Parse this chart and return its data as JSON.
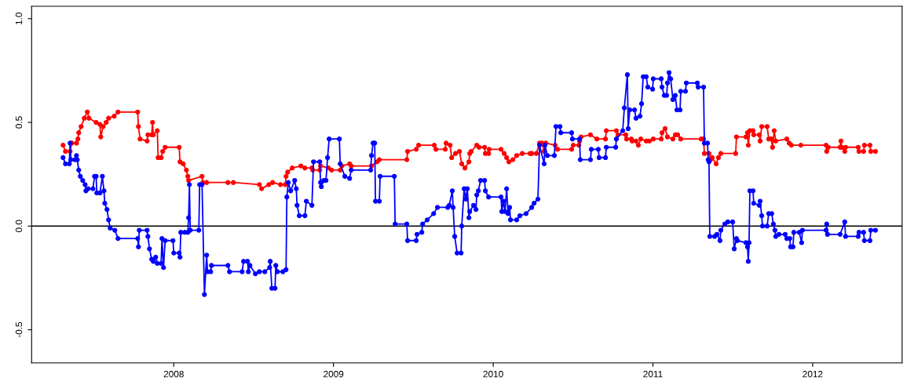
{
  "chart_data": {
    "type": "line",
    "marker": "circle",
    "line_style": "solid",
    "grid": false,
    "legend": false,
    "xlim": [
      2007.11,
      2012.56
    ],
    "ylim": [
      -0.66,
      1.06
    ],
    "xticks": [
      2008,
      2009,
      2010,
      2011,
      2012
    ],
    "yticks": [
      -0.5,
      {
        "value": 0,
        "label": "0.0"
      },
      0.5,
      {
        "value": 1,
        "label": "1.0"
      }
    ],
    "ref_lines": [
      {
        "axis": "y",
        "value": 0,
        "color": "#000000"
      }
    ],
    "series": [
      {
        "color": "#ff0000",
        "x": [
          2007.307,
          2007.322,
          2007.351,
          2007.361,
          2007.391,
          2007.4,
          2007.405,
          2007.42,
          2007.44,
          2007.459,
          2007.469,
          2007.514,
          2007.538,
          2007.543,
          2007.558,
          2007.577,
          2007.592,
          2007.627,
          2007.651,
          2007.774,
          2007.779,
          2007.789,
          2007.833,
          2007.838,
          2007.862,
          2007.867,
          2007.872,
          2007.897,
          2007.902,
          2007.921,
          2007.931,
          2007.946,
          2008.034,
          2008.039,
          2008.059,
          2008.079,
          2008.088,
          2008.093,
          2008.177,
          2008.182,
          2008.206,
          2008.339,
          2008.373,
          2008.536,
          2008.55,
          2008.595,
          2008.619,
          2008.668,
          2008.698,
          2008.703,
          2008.713,
          2008.742,
          2008.796,
          2008.821,
          2008.865,
          2008.87,
          2008.914,
          2008.919,
          2008.968,
          2008.988,
          2009.042,
          2009.052,
          2009.101,
          2009.111,
          2009.238,
          2009.273,
          2009.287,
          2009.459,
          2009.464,
          2009.518,
          2009.533,
          2009.631,
          2009.641,
          2009.7,
          2009.705,
          2009.73,
          2009.74,
          2009.764,
          2009.789,
          2009.803,
          2009.823,
          2009.848,
          2009.853,
          2009.862,
          2009.897,
          2009.912,
          2009.946,
          2009.951,
          2009.971,
          2009.975,
          2010.049,
          2010.069,
          2010.084,
          2010.098,
          2010.123,
          2010.147,
          2010.182,
          2010.231,
          2010.241,
          2010.27,
          2010.29,
          2010.305,
          2010.319,
          2010.329,
          2010.388,
          2010.403,
          2010.491,
          2010.501,
          2010.536,
          2010.541,
          2010.55,
          2010.609,
          2010.649,
          2010.703,
          2010.708,
          2010.771,
          2010.781,
          2010.83,
          2010.835,
          2010.865,
          2010.87,
          2010.894,
          2010.909,
          2010.924,
          2010.958,
          2010.978,
          2011.002,
          2011.052,
          2011.057,
          2011.076,
          2011.091,
          2011.125,
          2011.14,
          2011.155,
          2011.174,
          2011.302,
          2011.317,
          2011.322,
          2011.351,
          2011.361,
          2011.371,
          2011.396,
          2011.41,
          2011.425,
          2011.518,
          2011.523,
          2011.582,
          2011.592,
          2011.597,
          2011.607,
          2011.627,
          2011.631,
          2011.666,
          2011.671,
          2011.681,
          2011.715,
          2011.725,
          2011.74,
          2011.749,
          2011.759,
          2011.769,
          2011.838,
          2011.853,
          2011.867,
          2011.926,
          2012.084,
          2012.088,
          2012.098,
          2012.172,
          2012.177,
          2012.182,
          2012.201,
          2012.206,
          2012.285,
          2012.29,
          2012.319,
          2012.324,
          2012.359,
          2012.364,
          2012.393
        ],
        "values": [
          0.39,
          0.36,
          0.36,
          0.4,
          0.4,
          0.42,
          0.45,
          0.48,
          0.52,
          0.55,
          0.52,
          0.5,
          0.49,
          0.43,
          0.48,
          0.5,
          0.52,
          0.53,
          0.55,
          0.55,
          0.48,
          0.42,
          0.41,
          0.44,
          0.44,
          0.5,
          0.44,
          0.46,
          0.33,
          0.33,
          0.36,
          0.38,
          0.38,
          0.31,
          0.3,
          0.27,
          0.24,
          0.22,
          0.24,
          0.21,
          0.21,
          0.21,
          0.21,
          0.2,
          0.18,
          0.2,
          0.21,
          0.2,
          0.2,
          0.24,
          0.26,
          0.28,
          0.29,
          0.28,
          0.28,
          0.27,
          0.27,
          0.29,
          0.28,
          0.27,
          0.27,
          0.29,
          0.3,
          0.29,
          0.29,
          0.31,
          0.32,
          0.32,
          0.36,
          0.37,
          0.39,
          0.39,
          0.37,
          0.37,
          0.4,
          0.39,
          0.33,
          0.35,
          0.36,
          0.3,
          0.28,
          0.31,
          0.35,
          0.36,
          0.39,
          0.38,
          0.38,
          0.35,
          0.35,
          0.37,
          0.37,
          0.35,
          0.33,
          0.31,
          0.32,
          0.34,
          0.35,
          0.35,
          0.35,
          0.35,
          0.4,
          0.4,
          0.36,
          0.4,
          0.39,
          0.37,
          0.37,
          0.39,
          0.39,
          0.41,
          0.43,
          0.44,
          0.42,
          0.42,
          0.46,
          0.46,
          0.44,
          0.44,
          0.42,
          0.42,
          0.41,
          0.41,
          0.39,
          0.42,
          0.41,
          0.41,
          0.42,
          0.42,
          0.45,
          0.47,
          0.43,
          0.42,
          0.44,
          0.44,
          0.42,
          0.42,
          0.42,
          0.35,
          0.35,
          0.32,
          0.33,
          0.3,
          0.33,
          0.35,
          0.35,
          0.43,
          0.43,
          0.45,
          0.39,
          0.46,
          0.46,
          0.44,
          0.44,
          0.41,
          0.48,
          0.48,
          0.42,
          0.42,
          0.38,
          0.46,
          0.41,
          0.42,
          0.4,
          0.39,
          0.39,
          0.39,
          0.36,
          0.38,
          0.38,
          0.41,
          0.38,
          0.36,
          0.38,
          0.38,
          0.36,
          0.36,
          0.39,
          0.39,
          0.36,
          0.36
        ]
      },
      {
        "color": "#0000ff",
        "x": [
          2007.307,
          2007.322,
          2007.346,
          2007.351,
          2007.356,
          2007.381,
          2007.391,
          2007.396,
          2007.405,
          2007.415,
          2007.43,
          2007.445,
          2007.45,
          2007.464,
          2007.494,
          2007.504,
          2007.514,
          2007.518,
          2007.538,
          2007.553,
          2007.563,
          2007.568,
          2007.582,
          2007.592,
          2007.602,
          2007.631,
          2007.651,
          2007.774,
          2007.779,
          2007.784,
          2007.833,
          2007.838,
          2007.848,
          2007.862,
          2007.872,
          2007.887,
          2007.897,
          2007.921,
          2007.926,
          2007.936,
          2007.946,
          2007.995,
          2008.0,
          2008.034,
          2008.039,
          2008.044,
          2008.069,
          2008.088,
          2008.093,
          2008.098,
          2008.103,
          2008.157,
          2008.162,
          2008.177,
          2008.192,
          2008.206,
          2008.211,
          2008.231,
          2008.236,
          2008.339,
          2008.349,
          2008.428,
          2008.437,
          2008.462,
          2008.467,
          2008.477,
          2008.511,
          2008.536,
          2008.57,
          2008.6,
          2008.604,
          2008.614,
          2008.634,
          2008.639,
          2008.649,
          2008.683,
          2008.703,
          2008.708,
          2008.717,
          2008.732,
          2008.757,
          2008.767,
          2008.772,
          2008.786,
          2008.821,
          2008.83,
          2008.865,
          2008.875,
          2008.914,
          2008.919,
          2008.924,
          2008.939,
          2008.953,
          2008.963,
          2008.973,
          2009.037,
          2009.042,
          2009.071,
          2009.101,
          2009.111,
          2009.233,
          2009.238,
          2009.248,
          2009.258,
          2009.263,
          2009.287,
          2009.292,
          2009.381,
          2009.386,
          2009.459,
          2009.464,
          2009.518,
          2009.523,
          2009.553,
          2009.558,
          2009.587,
          2009.627,
          2009.651,
          2009.715,
          2009.725,
          2009.744,
          2009.749,
          2009.759,
          2009.774,
          2009.799,
          2009.803,
          2009.818,
          2009.828,
          2009.838,
          2009.848,
          2009.853,
          2009.877,
          2009.892,
          2009.897,
          2009.907,
          2009.921,
          2009.946,
          2009.951,
          2009.971,
          2010.049,
          2010.054,
          2010.064,
          2010.074,
          2010.084,
          2010.093,
          2010.103,
          2010.108,
          2010.147,
          2010.167,
          2010.206,
          2010.241,
          2010.256,
          2010.28,
          2010.29,
          2010.319,
          2010.324,
          2010.339,
          2010.383,
          2010.393,
          2010.418,
          2010.423,
          2010.491,
          2010.496,
          2010.541,
          2010.545,
          2010.609,
          2010.614,
          2010.658,
          2010.663,
          2010.703,
          2010.708,
          2010.767,
          2010.771,
          2010.811,
          2010.821,
          2010.84,
          2010.845,
          2010.855,
          2010.885,
          2010.894,
          2010.919,
          2010.929,
          2010.939,
          2010.958,
          2010.968,
          2010.998,
          2011.002,
          2011.052,
          2011.057,
          2011.071,
          2011.086,
          2011.091,
          2011.101,
          2011.111,
          2011.125,
          2011.14,
          2011.15,
          2011.17,
          2011.174,
          2011.204,
          2011.209,
          2011.278,
          2011.283,
          2011.317,
          2011.322,
          2011.342,
          2011.346,
          2011.351,
          2011.356,
          2011.386,
          2011.401,
          2011.42,
          2011.425,
          2011.45,
          2011.469,
          2011.499,
          2011.509,
          2011.523,
          2011.528,
          2011.582,
          2011.592,
          2011.597,
          2011.602,
          2011.607,
          2011.627,
          2011.631,
          2011.666,
          2011.671,
          2011.681,
          2011.686,
          2011.715,
          2011.725,
          2011.744,
          2011.754,
          2011.764,
          2011.769,
          2011.789,
          2011.828,
          2011.838,
          2011.857,
          2011.862,
          2011.877,
          2011.882,
          2011.916,
          2011.931,
          2011.936,
          2012.084,
          2012.088,
          2012.093,
          2012.172,
          2012.201,
          2012.206,
          2012.285,
          2012.29,
          2012.319,
          2012.324,
          2012.359,
          2012.364,
          2012.393
        ],
        "values": [
          0.33,
          0.3,
          0.3,
          0.4,
          0.32,
          0.32,
          0.34,
          0.32,
          0.27,
          0.24,
          0.22,
          0.2,
          0.17,
          0.18,
          0.18,
          0.24,
          0.24,
          0.16,
          0.16,
          0.24,
          0.17,
          0.11,
          0.08,
          0.03,
          -0.01,
          -0.02,
          -0.06,
          -0.06,
          -0.1,
          -0.02,
          -0.02,
          -0.05,
          -0.11,
          -0.16,
          -0.17,
          -0.15,
          -0.18,
          -0.18,
          -0.06,
          -0.2,
          -0.07,
          -0.07,
          -0.13,
          -0.13,
          -0.15,
          -0.03,
          -0.03,
          -0.03,
          0.04,
          0.2,
          -0.02,
          -0.02,
          0.2,
          0.2,
          -0.33,
          -0.14,
          -0.22,
          -0.22,
          -0.19,
          -0.19,
          -0.22,
          -0.22,
          -0.17,
          -0.17,
          -0.22,
          -0.19,
          -0.23,
          -0.22,
          -0.22,
          -0.2,
          -0.17,
          -0.3,
          -0.3,
          -0.19,
          -0.22,
          -0.22,
          -0.21,
          0.14,
          0.21,
          0.17,
          0.22,
          0.18,
          0.1,
          0.05,
          0.05,
          0.12,
          0.1,
          0.31,
          0.31,
          0.21,
          0.19,
          0.22,
          0.22,
          0.33,
          0.42,
          0.42,
          0.3,
          0.24,
          0.23,
          0.27,
          0.27,
          0.34,
          0.4,
          0.4,
          0.12,
          0.12,
          0.24,
          0.24,
          0.01,
          0.01,
          -0.07,
          -0.07,
          -0.04,
          -0.03,
          0.01,
          0.03,
          0.06,
          0.09,
          0.09,
          0.1,
          0.17,
          0.09,
          -0.05,
          -0.13,
          -0.13,
          0.0,
          0.18,
          0.13,
          0.18,
          0.04,
          0.07,
          0.1,
          0.08,
          0.15,
          0.17,
          0.22,
          0.22,
          0.17,
          0.14,
          0.14,
          0.07,
          0.12,
          0.07,
          0.18,
          0.06,
          0.09,
          0.03,
          0.03,
          0.05,
          0.06,
          0.09,
          0.11,
          0.13,
          0.39,
          0.3,
          0.39,
          0.34,
          0.34,
          0.48,
          0.48,
          0.45,
          0.45,
          0.42,
          0.42,
          0.32,
          0.32,
          0.37,
          0.37,
          0.33,
          0.33,
          0.38,
          0.38,
          0.42,
          0.46,
          0.57,
          0.73,
          0.47,
          0.56,
          0.56,
          0.52,
          0.53,
          0.59,
          0.72,
          0.72,
          0.67,
          0.66,
          0.71,
          0.71,
          0.67,
          0.63,
          0.63,
          0.69,
          0.74,
          0.71,
          0.61,
          0.63,
          0.56,
          0.56,
          0.65,
          0.65,
          0.69,
          0.69,
          0.67,
          0.67,
          0.4,
          0.4,
          0.32,
          0.31,
          -0.05,
          -0.05,
          -0.04,
          -0.07,
          -0.02,
          0.01,
          0.02,
          0.02,
          -0.11,
          -0.06,
          -0.07,
          -0.08,
          -0.1,
          -0.17,
          -0.08,
          0.17,
          0.17,
          0.11,
          0.1,
          0.12,
          0.05,
          0.0,
          0.0,
          0.06,
          0.06,
          0.01,
          -0.02,
          -0.05,
          -0.04,
          -0.04,
          -0.06,
          -0.06,
          -0.1,
          -0.1,
          -0.03,
          -0.03,
          -0.08,
          -0.02,
          -0.02,
          0.01,
          -0.04,
          -0.04,
          0.02,
          -0.05,
          -0.05,
          -0.03,
          -0.03,
          -0.07,
          -0.07,
          -0.02,
          -0.02
        ]
      }
    ]
  }
}
